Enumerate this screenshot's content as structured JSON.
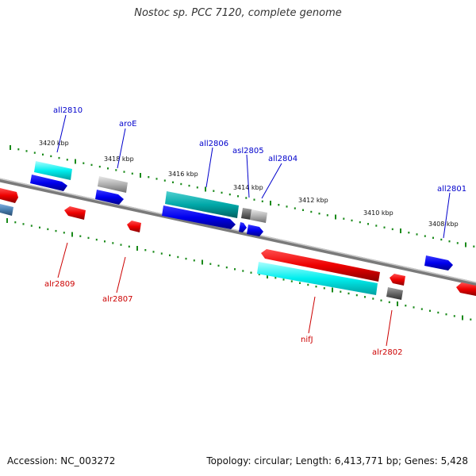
{
  "header": {
    "title": "Nostoc sp. PCC 7120, complete genome"
  },
  "footer": {
    "accession": "Accession: NC_003272",
    "summary": "Topology: circular; Length: 6,413,771 bp; Genes: 5,428"
  },
  "scale_labels": [
    "3420 kbp",
    "3418 kbp",
    "3416 kbp",
    "3414 kbp",
    "3412 kbp",
    "3410 kbp",
    "3408 kbp"
  ],
  "top_gene_labels": [
    "all2810",
    "aroE",
    "all2806",
    "asl2805",
    "all2804",
    "all2801"
  ],
  "bottom_gene_labels": [
    "alr2809",
    "alr2807",
    "nifJ",
    "alr2802"
  ],
  "colors": {
    "forward_cds": "#0000ee",
    "reverse_cds": "#ee0000",
    "forward_label": "#0000cc",
    "reverse_label": "#cc0000",
    "rna_forward": "#00e5ee",
    "rna_reverse": "#00f0f0",
    "teal_gene": "#00a8a8",
    "pseudo_gray": "#aaaaaa",
    "dark_gray": "#666666",
    "steel_blue": "#4a7fb0",
    "backbone": "#7a7a7a",
    "tick_green": "#1a8a1a"
  }
}
